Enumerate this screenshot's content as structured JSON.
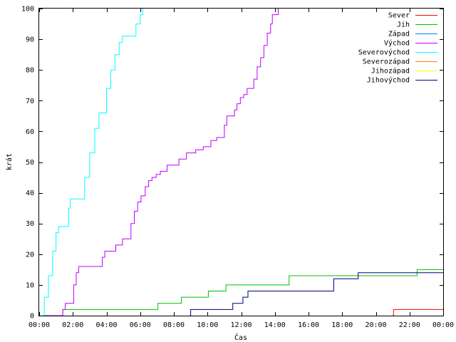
{
  "chart_data": {
    "type": "line",
    "title": "",
    "xlabel": "Čas",
    "ylabel": "krát",
    "ylim": [
      0,
      100
    ],
    "xlim_hours": [
      0,
      24
    ],
    "x_unit": "hours since 00:00",
    "xticks": [
      {
        "hour": 0,
        "label": "00:00"
      },
      {
        "hour": 2,
        "label": "02:00"
      },
      {
        "hour": 4,
        "label": "04:00"
      },
      {
        "hour": 6,
        "label": "06:00"
      },
      {
        "hour": 8,
        "label": "08:00"
      },
      {
        "hour": 10,
        "label": "10:00"
      },
      {
        "hour": 12,
        "label": "12:00"
      },
      {
        "hour": 14,
        "label": "14:00"
      },
      {
        "hour": 16,
        "label": "16:00"
      },
      {
        "hour": 18,
        "label": "18:00"
      },
      {
        "hour": 20,
        "label": "20:00"
      },
      {
        "hour": 22,
        "label": "22:00"
      },
      {
        "hour": 24,
        "label": "00:00"
      }
    ],
    "yticks": [
      {
        "value": 0,
        "label": "0"
      },
      {
        "value": 10,
        "label": "10"
      },
      {
        "value": 20,
        "label": "20"
      },
      {
        "value": 30,
        "label": "30"
      },
      {
        "value": 40,
        "label": "40"
      },
      {
        "value": 50,
        "label": "50"
      },
      {
        "value": 60,
        "label": "60"
      },
      {
        "value": 70,
        "label": "70"
      },
      {
        "value": 80,
        "label": "80"
      },
      {
        "value": 90,
        "label": "90"
      },
      {
        "value": 100,
        "label": "100"
      }
    ],
    "grid": false,
    "legend_position": "top-right",
    "series": [
      {
        "name": "Sever",
        "color": "#ff0000",
        "step": true,
        "points": [
          [
            21,
            0
          ],
          [
            21.05,
            2
          ],
          [
            24,
            2
          ]
        ]
      },
      {
        "name": "Jih",
        "color": "#00c000",
        "step": true,
        "points": [
          [
            0,
            0
          ],
          [
            1.35,
            0
          ],
          [
            1.4,
            2
          ],
          [
            7.0,
            2
          ],
          [
            7.05,
            4
          ],
          [
            8.4,
            4
          ],
          [
            8.45,
            6
          ],
          [
            10.0,
            6
          ],
          [
            10.05,
            8
          ],
          [
            11.05,
            8
          ],
          [
            11.1,
            10
          ],
          [
            14.8,
            10
          ],
          [
            14.85,
            13
          ],
          [
            22.4,
            13
          ],
          [
            22.45,
            15
          ],
          [
            24,
            15
          ]
        ]
      },
      {
        "name": "Západ",
        "color": "#0080ff",
        "step": true,
        "points": []
      },
      {
        "name": "Východ",
        "color": "#c000ff",
        "step": true,
        "points": [
          [
            0,
            0
          ],
          [
            1.35,
            0
          ],
          [
            1.4,
            2
          ],
          [
            1.55,
            4
          ],
          [
            1.95,
            4
          ],
          [
            2.05,
            10
          ],
          [
            2.2,
            14
          ],
          [
            2.35,
            16
          ],
          [
            3.55,
            16
          ],
          [
            3.75,
            19
          ],
          [
            3.9,
            21
          ],
          [
            4.45,
            21
          ],
          [
            4.55,
            23
          ],
          [
            4.85,
            23
          ],
          [
            4.95,
            25
          ],
          [
            5.25,
            25
          ],
          [
            5.45,
            30
          ],
          [
            5.65,
            34
          ],
          [
            5.85,
            37
          ],
          [
            6.05,
            39
          ],
          [
            6.3,
            42
          ],
          [
            6.5,
            44
          ],
          [
            6.7,
            45
          ],
          [
            6.95,
            46
          ],
          [
            7.2,
            47
          ],
          [
            7.45,
            47
          ],
          [
            7.6,
            49
          ],
          [
            8.1,
            49
          ],
          [
            8.3,
            51
          ],
          [
            8.65,
            51
          ],
          [
            8.75,
            53
          ],
          [
            9.15,
            53
          ],
          [
            9.3,
            54
          ],
          [
            9.75,
            55
          ],
          [
            10.05,
            55
          ],
          [
            10.2,
            57
          ],
          [
            10.5,
            57
          ],
          [
            10.55,
            58
          ],
          [
            10.85,
            58
          ],
          [
            11.0,
            62
          ],
          [
            11.15,
            65
          ],
          [
            11.45,
            65
          ],
          [
            11.6,
            67
          ],
          [
            11.75,
            69
          ],
          [
            11.95,
            71
          ],
          [
            12.15,
            72
          ],
          [
            12.35,
            74
          ],
          [
            12.65,
            74
          ],
          [
            12.75,
            77
          ],
          [
            12.95,
            81
          ],
          [
            13.15,
            84
          ],
          [
            13.35,
            88
          ],
          [
            13.55,
            92
          ],
          [
            13.75,
            95
          ],
          [
            13.85,
            98
          ],
          [
            14.05,
            98
          ],
          [
            14.2,
            100
          ]
        ]
      },
      {
        "name": "Severovýchod",
        "color": "#00ffff",
        "step": true,
        "points": [
          [
            0,
            0
          ],
          [
            0.3,
            6
          ],
          [
            0.55,
            13
          ],
          [
            0.8,
            21
          ],
          [
            1.0,
            27
          ],
          [
            1.15,
            29
          ],
          [
            1.4,
            29
          ],
          [
            1.75,
            35
          ],
          [
            1.85,
            38
          ],
          [
            2.4,
            38
          ],
          [
            2.7,
            45
          ],
          [
            3.0,
            53
          ],
          [
            3.3,
            61
          ],
          [
            3.55,
            66
          ],
          [
            3.75,
            66
          ],
          [
            4.0,
            74
          ],
          [
            4.25,
            80
          ],
          [
            4.5,
            85
          ],
          [
            4.75,
            89
          ],
          [
            4.95,
            91
          ],
          [
            5.5,
            91
          ],
          [
            5.75,
            95
          ],
          [
            6.0,
            98
          ],
          [
            6.15,
            100
          ]
        ]
      },
      {
        "name": "Severozápad",
        "color": "#ff8000",
        "step": true,
        "points": []
      },
      {
        "name": "Jihozápad",
        "color": "#ffff00",
        "step": true,
        "points": []
      },
      {
        "name": "Jihovýchod",
        "color": "#000080",
        "step": true,
        "points": [
          [
            8.95,
            0
          ],
          [
            9.0,
            2
          ],
          [
            11.45,
            2
          ],
          [
            11.5,
            4
          ],
          [
            12.05,
            4
          ],
          [
            12.1,
            6
          ],
          [
            12.35,
            6
          ],
          [
            12.4,
            8
          ],
          [
            17.45,
            8
          ],
          [
            17.5,
            12
          ],
          [
            18.9,
            12
          ],
          [
            18.95,
            14
          ],
          [
            24,
            14
          ]
        ]
      }
    ]
  }
}
